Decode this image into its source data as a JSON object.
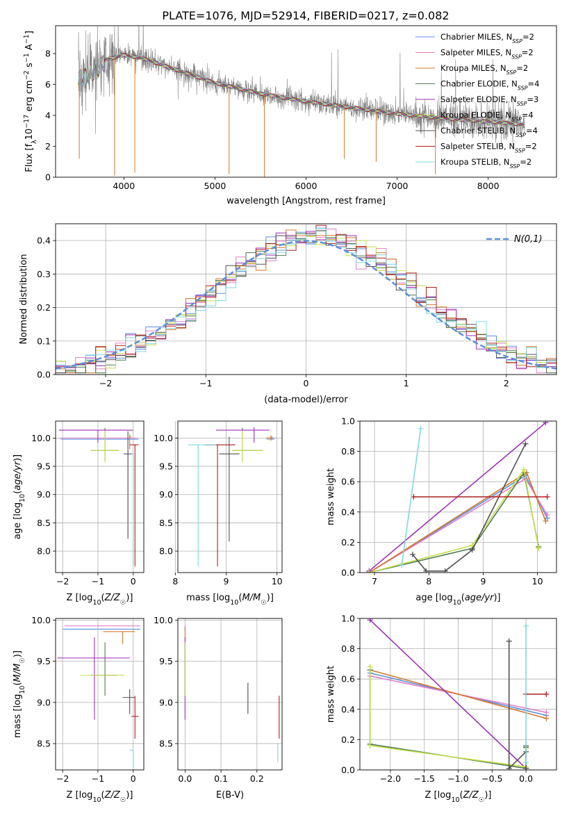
{
  "figure_title": "PLATE=1076, MJD=52914, FIBERID=0217, z=0.082",
  "colors": {
    "cM": "#5b8fdc",
    "sM": "#e27fc6",
    "kM": "#d4772a",
    "cE": "#4f7a4f",
    "sE": "#9b2fb6",
    "kE": "#c6e04e",
    "cS": "#505050",
    "sS": "#b01e1e",
    "kS": "#7fd8e0",
    "data": "#808080",
    "normal": "#5b8fdc",
    "grid": "#b0b0b0"
  },
  "chart_data": [
    {
      "id": "spectrum",
      "type": "line",
      "xlabel": "wavelength [Angstrom, rest frame]",
      "ylabel": "Flux [f_λ 10^-17 erg cm^-2 s^-1 A^-1]",
      "xlim": [
        3250,
        8750
      ],
      "ylim": [
        0,
        9.8
      ],
      "xticks": [
        4000,
        5000,
        6000,
        7000,
        8000
      ],
      "yticks": [
        0,
        2,
        4,
        6,
        8
      ],
      "grid": false,
      "legend_position": "top-right",
      "legend": [
        {
          "key": "cM",
          "name": "Chabrier MILES, N",
          "nssp": "2"
        },
        {
          "key": "sM",
          "name": "Salpeter MILES, N",
          "nssp": "2"
        },
        {
          "key": "kM",
          "name": "Kroupa MILES, N",
          "nssp": "2"
        },
        {
          "key": "cE",
          "name": "Chabrier ELODIE, N",
          "nssp": "4"
        },
        {
          "key": "sE",
          "name": "Salpeter ELODIE, N",
          "nssp": "3"
        },
        {
          "key": "kE",
          "name": "Kroupa ELODIE, N",
          "nssp": "4"
        },
        {
          "key": "cS",
          "name": "Chabrier STELIB, N",
          "nssp": "4"
        },
        {
          "key": "sS",
          "name": "Salpeter STELIB, N",
          "nssp": "2"
        },
        {
          "key": "kS",
          "name": "Kroupa STELIB, N",
          "nssp": "2"
        }
      ],
      "continuum": [
        [
          3500,
          6.3
        ],
        [
          3700,
          6.9
        ],
        [
          3800,
          7.6
        ],
        [
          4000,
          7.9
        ],
        [
          4200,
          7.7
        ],
        [
          4500,
          7.1
        ],
        [
          5000,
          6.1
        ],
        [
          5500,
          5.4
        ],
        [
          6000,
          4.9
        ],
        [
          6500,
          4.5
        ],
        [
          7000,
          4.1
        ],
        [
          7500,
          3.8
        ],
        [
          8000,
          3.6
        ],
        [
          8400,
          3.4
        ]
      ]
    },
    {
      "id": "residuals",
      "type": "line",
      "xlabel": "(data-model)/error",
      "ylabel": "Normed distribution",
      "xlim": [
        -2.5,
        2.5
      ],
      "ylim": [
        0,
        0.45
      ],
      "xticks": [
        -2,
        -1,
        0,
        1,
        2
      ],
      "yticks": [
        0.0,
        0.1,
        0.2,
        0.3,
        0.4
      ],
      "grid": true,
      "legend_position": "top-right",
      "legend_label": "N(0,1)",
      "bin_width": 0.1
    },
    {
      "id": "age_Z",
      "type": "scatter",
      "xlabel": "Z [log10(Z/Z☉)]",
      "ylabel": "age  [log10(age/yr)]",
      "xlim": [
        -2.2,
        0.3
      ],
      "ylim": [
        7.62,
        10.3
      ],
      "xticks": [
        -2,
        -1,
        0
      ],
      "yticks": [
        8.0,
        8.5,
        9.0,
        9.5,
        10.0
      ],
      "grid": true,
      "points": [
        {
          "key": "cM",
          "x": -0.9,
          "xerr": [
            1.15,
            1.05
          ],
          "y": 9.98,
          "yerr": [
            0.0,
            0.0
          ]
        },
        {
          "key": "sM",
          "x": -0.9,
          "xerr": [
            1.2,
            1.0
          ],
          "y": 10.0,
          "yerr": [
            0.0,
            0.0
          ]
        },
        {
          "key": "kM",
          "x": -0.1,
          "xerr": [
            0.0,
            0.05
          ],
          "y": 10.02,
          "yerr": [
            0.22,
            0.05
          ]
        },
        {
          "key": "cE",
          "x": -0.8,
          "xerr": [
            0.4,
            0.4
          ],
          "y": 9.78,
          "yerr": [
            0.2,
            0.4
          ]
        },
        {
          "key": "sE",
          "x": -1.0,
          "xerr": [
            1.1,
            1.0
          ],
          "y": 10.14,
          "yerr": [
            0.22,
            0.0
          ]
        },
        {
          "key": "kE",
          "x": -0.8,
          "xerr": [
            0.4,
            0.4
          ],
          "y": 9.78,
          "yerr": [
            0.2,
            0.35
          ]
        },
        {
          "key": "cS",
          "x": -0.15,
          "xerr": [
            0.12,
            0.15
          ],
          "y": 9.72,
          "yerr": [
            1.5,
            0.4
          ]
        },
        {
          "key": "sS",
          "x": 0.05,
          "xerr": [
            0.15,
            0.1
          ],
          "y": 9.88,
          "yerr": [
            2.15,
            0.0
          ]
        },
        {
          "key": "kS",
          "x": 0.0,
          "xerr": [
            0.05,
            0.0
          ],
          "y": 9.72,
          "yerr": [
            1.97,
            0.0
          ]
        }
      ]
    },
    {
      "id": "age_mass",
      "type": "scatter",
      "xlabel": "mass [log10(M/M☉)]",
      "ylabel": "",
      "xlim": [
        8.05,
        10.1
      ],
      "ylim": [
        7.62,
        10.3
      ],
      "xticks": [
        8,
        9,
        10
      ],
      "yticks": [
        8.0,
        8.5,
        9.0,
        9.5,
        10.0
      ],
      "grid": true,
      "points": [
        {
          "key": "cM",
          "x": 9.9,
          "xerr": [
            0.1,
            0.05
          ],
          "y": 9.98,
          "yerr": [
            0.0,
            0.05
          ]
        },
        {
          "key": "sM",
          "x": 9.93,
          "xerr": [
            0.05,
            0.05
          ],
          "y": 10.0,
          "yerr": [
            0.0,
            0.0
          ]
        },
        {
          "key": "kM",
          "x": 9.88,
          "xerr": [
            0.1,
            0.05
          ],
          "y": 10.0,
          "yerr": [
            0.05,
            0.05
          ]
        },
        {
          "key": "cE",
          "x": 9.32,
          "xerr": [
            0.2,
            0.4
          ],
          "y": 9.78,
          "yerr": [
            0.2,
            0.4
          ]
        },
        {
          "key": "sE",
          "x": 9.55,
          "xerr": [
            0.75,
            0.3
          ],
          "y": 10.14,
          "yerr": [
            0.22,
            0.05
          ]
        },
        {
          "key": "kE",
          "x": 9.32,
          "xerr": [
            0.2,
            0.4
          ],
          "y": 9.78,
          "yerr": [
            0.2,
            0.35
          ]
        },
        {
          "key": "cS",
          "x": 9.06,
          "xerr": [
            0.2,
            0.2
          ],
          "y": 9.72,
          "yerr": [
            1.55,
            0.3
          ]
        },
        {
          "key": "sS",
          "x": 8.83,
          "xerr": [
            0.25,
            0.35
          ],
          "y": 9.88,
          "yerr": [
            2.15,
            0.0
          ]
        },
        {
          "key": "kS",
          "x": 8.45,
          "xerr": [
            0.2,
            0.35
          ],
          "y": 9.88,
          "yerr": [
            2.15,
            0.0
          ]
        }
      ]
    },
    {
      "id": "weight_age",
      "type": "line",
      "xlabel": "age  [log10(age/yr)]",
      "ylabel": "mass weight",
      "xlim": [
        6.73,
        10.35
      ],
      "ylim": [
        0,
        1.0
      ],
      "xticks": [
        7,
        8,
        9,
        10
      ],
      "yticks": [
        0.0,
        0.2,
        0.4,
        0.6,
        0.8,
        1.0
      ],
      "grid": true,
      "series": [
        {
          "key": "cM",
          "x": [
            6.9,
            9.78,
            10.18
          ],
          "y": [
            0.0,
            0.64,
            0.36
          ]
        },
        {
          "key": "sM",
          "x": [
            6.9,
            9.78,
            10.18
          ],
          "y": [
            0.0,
            0.62,
            0.38
          ]
        },
        {
          "key": "kM",
          "x": [
            6.9,
            9.8,
            10.15
          ],
          "y": [
            0.0,
            0.66,
            0.34
          ]
        },
        {
          "key": "cE",
          "x": [
            6.9,
            8.8,
            9.75,
            10.02
          ],
          "y": [
            0.0,
            0.16,
            0.66,
            0.17
          ]
        },
        {
          "key": "sE",
          "x": [
            6.9,
            10.15
          ],
          "y": [
            0.01,
            0.99
          ]
        },
        {
          "key": "kE",
          "x": [
            6.9,
            8.8,
            9.75,
            10.02
          ],
          "y": [
            0.0,
            0.18,
            0.68,
            0.16
          ]
        },
        {
          "key": "cS",
          "x": [
            7.7,
            7.95,
            8.3,
            8.8,
            9.78
          ],
          "y": [
            0.12,
            0.01,
            0.01,
            0.15,
            0.85
          ]
        },
        {
          "key": "sS",
          "x": [
            7.72,
            10.18
          ],
          "y": [
            0.5,
            0.5
          ]
        },
        {
          "key": "kS",
          "x": [
            7.5,
            7.85
          ],
          "y": [
            0.05,
            0.95
          ]
        }
      ]
    },
    {
      "id": "mass_Z",
      "type": "scatter",
      "xlabel": "Z [log10(Z/Z☉)]",
      "ylabel": "mass [log10(M/M☉)]",
      "xlim": [
        -2.2,
        0.3
      ],
      "ylim": [
        8.18,
        10.02
      ],
      "xticks": [
        -2,
        -1,
        0
      ],
      "yticks": [
        8.5,
        9.0,
        9.5,
        10.0
      ],
      "grid": true,
      "points": [
        {
          "key": "cM",
          "x": -0.85,
          "xerr": [
            1.15,
            1.05
          ],
          "y": 9.89,
          "yerr": [
            0.0,
            0.0
          ]
        },
        {
          "key": "sM",
          "x": -0.85,
          "xerr": [
            1.1,
            1.05
          ],
          "y": 9.93,
          "yerr": [
            0.0,
            0.0
          ]
        },
        {
          "key": "kM",
          "x": -0.3,
          "xerr": [
            0.55,
            0.35
          ],
          "y": 9.86,
          "yerr": [
            0.15,
            0.0
          ]
        },
        {
          "key": "cE",
          "x": -0.8,
          "xerr": [
            0.4,
            0.35
          ],
          "y": 9.33,
          "yerr": [
            0.25,
            0.4
          ]
        },
        {
          "key": "sE",
          "x": -1.1,
          "xerr": [
            1.05,
            1.0
          ],
          "y": 9.54,
          "yerr": [
            0.75,
            0.25
          ]
        },
        {
          "key": "kE",
          "x": -1.0,
          "xerr": [
            0.5,
            0.75
          ],
          "y": 9.33,
          "yerr": [
            0.05,
            0.0
          ]
        },
        {
          "key": "cS",
          "x": -0.1,
          "xerr": [
            0.2,
            0.15
          ],
          "y": 9.06,
          "yerr": [
            0.2,
            0.1
          ]
        },
        {
          "key": "sS",
          "x": 0.05,
          "xerr": [
            0.1,
            0.1
          ],
          "y": 8.83,
          "yerr": [
            0.27,
            0.25
          ]
        },
        {
          "key": "kS",
          "x": 0.0,
          "xerr": [
            0.1,
            0.0
          ],
          "y": 8.42,
          "yerr": [
            0.2,
            0.0
          ]
        }
      ]
    },
    {
      "id": "mass_EBV",
      "type": "scatter",
      "xlabel": "E(B-V)",
      "ylabel": "",
      "xlim": [
        -0.02,
        0.27
      ],
      "ylim": [
        8.18,
        10.02
      ],
      "xticks": [
        0.0,
        0.1,
        0.2
      ],
      "yticks": [
        8.5,
        9.0,
        9.5,
        10.0
      ],
      "grid": true,
      "points": [
        {
          "key": "cM",
          "x": 0.0,
          "xerr": [
            0.0,
            0.0
          ],
          "y": 9.89,
          "yerr": [
            0.02,
            0.02
          ]
        },
        {
          "key": "sM",
          "x": 0.0,
          "xerr": [
            0.0,
            0.0
          ],
          "y": 9.92,
          "yerr": [
            0.02,
            0.02
          ]
        },
        {
          "key": "kM",
          "x": 0.0,
          "xerr": [
            0.0,
            0.0
          ],
          "y": 9.86,
          "yerr": [
            0.1,
            0.05
          ]
        },
        {
          "key": "cE",
          "x": 0.0,
          "xerr": [
            0.0,
            0.0
          ],
          "y": 9.33,
          "yerr": [
            0.25,
            0.4
          ]
        },
        {
          "key": "sE",
          "x": 0.0,
          "xerr": [
            0.0,
            0.0
          ],
          "y": 9.54,
          "yerr": [
            0.75,
            0.25
          ]
        },
        {
          "key": "kE",
          "x": 0.0,
          "xerr": [
            0.0,
            0.0
          ],
          "y": 9.33,
          "yerr": [
            0.25,
            0.4
          ]
        },
        {
          "key": "cS",
          "x": 0.175,
          "xerr": [
            0.0,
            0.0
          ],
          "y": 9.06,
          "yerr": [
            0.2,
            0.18
          ]
        },
        {
          "key": "sS",
          "x": 0.262,
          "xerr": [
            0.0,
            0.0
          ],
          "y": 8.83,
          "yerr": [
            0.27,
            0.25
          ]
        },
        {
          "key": "kS",
          "x": 0.258,
          "xerr": [
            0.0,
            0.0
          ],
          "y": 8.42,
          "yerr": [
            0.15,
            0.08
          ]
        }
      ]
    },
    {
      "id": "weight_Z",
      "type": "line",
      "xlabel": "Z [log10(Z/Z☉)]",
      "ylabel": "mass weight",
      "xlim": [
        -2.45,
        0.45
      ],
      "ylim": [
        0,
        1.0
      ],
      "xticks": [
        -2.0,
        -1.5,
        -1.0,
        -0.5,
        0.0
      ],
      "yticks": [
        0.0,
        0.2,
        0.4,
        0.6,
        0.8,
        1.0
      ],
      "grid": true,
      "series": [
        {
          "key": "cM",
          "x": [
            -2.3,
            0.3
          ],
          "y": [
            0.64,
            0.36
          ]
        },
        {
          "key": "sM",
          "x": [
            -2.3,
            0.3
          ],
          "y": [
            0.62,
            0.38
          ]
        },
        {
          "key": "kM",
          "x": [
            -2.3,
            0.3
          ],
          "y": [
            0.66,
            0.34
          ]
        },
        {
          "key": "cE",
          "x": [
            -2.3,
            -2.3,
            0.0,
            0.0
          ],
          "y": [
            0.66,
            0.17,
            0.01,
            0.16
          ]
        },
        {
          "key": "sE",
          "x": [
            -2.3,
            0.0
          ],
          "y": [
            0.99,
            0.01
          ]
        },
        {
          "key": "kE",
          "x": [
            -2.3,
            -2.3,
            0.0,
            0.0
          ],
          "y": [
            0.68,
            0.16,
            0.02,
            0.14
          ]
        },
        {
          "key": "cS",
          "x": [
            -0.25,
            -0.25,
            0.0,
            0.0,
            0.0
          ],
          "y": [
            0.85,
            0.01,
            0.12,
            0.01,
            0.15
          ]
        },
        {
          "key": "sS",
          "x": [
            0.0,
            0.3
          ],
          "y": [
            0.5,
            0.5
          ]
        },
        {
          "key": "kS",
          "x": [
            0.0,
            0.0
          ],
          "y": [
            0.05,
            0.95
          ]
        }
      ]
    }
  ]
}
